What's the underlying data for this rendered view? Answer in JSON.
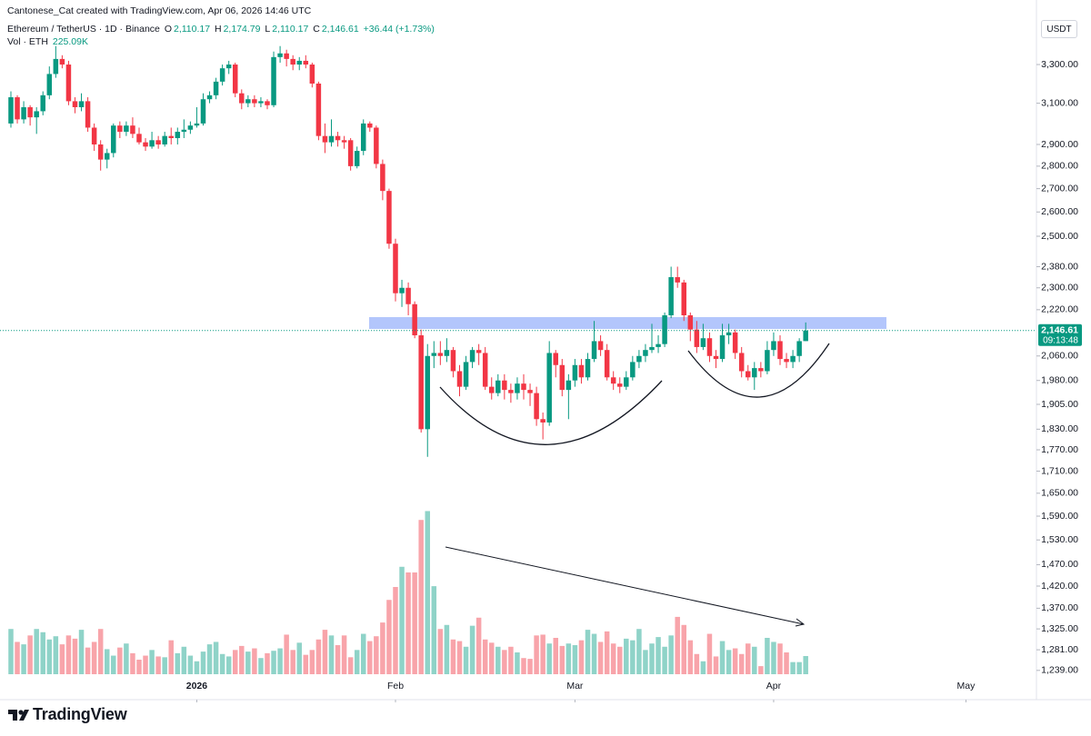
{
  "header": {
    "attribution": "Cantonese_Cat created with TradingView.com, Apr 06, 2026 14:46 UTC",
    "symbol": "Ethereum / TetherUS · 1D · Binance",
    "ohlc": [
      {
        "key": "O",
        "value": "2,110.17"
      },
      {
        "key": "H",
        "value": "2,174.79"
      },
      {
        "key": "L",
        "value": "2,110.17"
      },
      {
        "key": "C",
        "value": "2,146.61"
      }
    ],
    "change": "+36.44 (+1.73%)",
    "volume_title": "Vol · ETH",
    "volume_value": "225.09K"
  },
  "chart_data": {
    "type": "candlestick",
    "currency": "USDT",
    "open": [
      3000,
      3130,
      3020,
      3080,
      3030,
      3060,
      3140,
      3250,
      3330,
      3300,
      3110,
      3080,
      3110,
      2980,
      2900,
      2830,
      2860,
      2990,
      2960,
      2990,
      2950,
      2910,
      2890,
      2920,
      2900,
      2940,
      2930,
      2960,
      2970,
      2990,
      3000,
      3120,
      3140,
      3210,
      3280,
      3300,
      3150,
      3100,
      3120,
      3100,
      3110,
      3090,
      3340,
      3360,
      3330,
      3300,
      3320,
      3300,
      3200,
      2940,
      2910,
      2940,
      2920,
      2920,
      2800,
      2870,
      3000,
      2980,
      2810,
      2690,
      2470,
      2280,
      2300,
      2240,
      2130,
      1830,
      2060,
      2070,
      2060,
      2080,
      2010,
      1960,
      2040,
      2080,
      2070,
      1960,
      1940,
      1980,
      1950,
      1940,
      1970,
      1950,
      1940,
      1860,
      1850,
      2070,
      2030,
      1950,
      1980,
      2030,
      1990,
      2050,
      2110,
      2080,
      1990,
      1970,
      1960,
      1990,
      2040,
      2060,
      2080,
      2090,
      2100,
      2200,
      2340,
      2320,
      2200,
      2150,
      2090,
      2120,
      2060,
      2050,
      2130,
      2140,
      2070,
      2010,
      1990,
      2020,
      2010,
      2080,
      2110,
      2050,
      2040,
      2060,
      2110.17
    ],
    "high": [
      3160,
      3140,
      3110,
      3090,
      3080,
      3160,
      3290,
      3400,
      3350,
      3320,
      3130,
      3150,
      3130,
      3000,
      2920,
      2880,
      3000,
      3010,
      3010,
      3030,
      2980,
      2930,
      2960,
      2940,
      2960,
      2980,
      2980,
      3020,
      3010,
      3080,
      3150,
      3160,
      3230,
      3300,
      3320,
      3310,
      3170,
      3140,
      3140,
      3130,
      3120,
      3370,
      3400,
      3380,
      3350,
      3340,
      3350,
      3310,
      3210,
      3000,
      3020,
      2960,
      2940,
      2930,
      2890,
      3020,
      3010,
      2990,
      2830,
      2700,
      2490,
      2330,
      2320,
      2250,
      2150,
      2100,
      2110,
      2110,
      2120,
      2090,
      2030,
      2060,
      2090,
      2100,
      2090,
      1990,
      2000,
      2000,
      1970,
      1990,
      2000,
      1970,
      1960,
      1880,
      2110,
      2080,
      2050,
      2000,
      2050,
      2050,
      2070,
      2180,
      2130,
      2100,
      2010,
      1990,
      2010,
      2060,
      2080,
      2100,
      2170,
      2130,
      2210,
      2380,
      2380,
      2330,
      2210,
      2180,
      2170,
      2140,
      2080,
      2170,
      2170,
      2150,
      2090,
      2030,
      2040,
      2040,
      2110,
      2140,
      2130,
      2070,
      2080,
      2120,
      2174.79
    ],
    "low": [
      2980,
      3000,
      3000,
      2990,
      2950,
      3040,
      3120,
      3230,
      3280,
      3090,
      3050,
      3060,
      2960,
      2870,
      2780,
      2790,
      2840,
      2930,
      2940,
      2930,
      2900,
      2870,
      2880,
      2880,
      2890,
      2900,
      2900,
      2930,
      2950,
      2980,
      2990,
      3100,
      3120,
      3190,
      3250,
      3130,
      3070,
      3080,
      3080,
      3080,
      3070,
      3080,
      3310,
      3290,
      3270,
      3270,
      3280,
      3180,
      2920,
      2860,
      2890,
      2890,
      2880,
      2780,
      2790,
      2850,
      2960,
      2790,
      2650,
      2450,
      2250,
      2230,
      2200,
      2120,
      1820,
      1750,
      2020,
      2030,
      2040,
      1990,
      1930,
      1950,
      2020,
      2030,
      1950,
      1920,
      1930,
      1920,
      1910,
      1920,
      1920,
      1900,
      1840,
      1800,
      1840,
      1990,
      1930,
      1860,
      1960,
      1970,
      1980,
      2040,
      2060,
      1980,
      1950,
      1940,
      1950,
      1980,
      2020,
      2040,
      2070,
      2070,
      2090,
      2190,
      2300,
      2180,
      2110,
      2070,
      2080,
      2040,
      2020,
      2040,
      2100,
      2050,
      1990,
      1980,
      1950,
      1990,
      2000,
      2060,
      2030,
      2020,
      2020,
      2040,
      2110.17
    ],
    "close": [
      3130,
      3020,
      3080,
      3030,
      3060,
      3140,
      3250,
      3330,
      3300,
      3110,
      3080,
      3110,
      2980,
      2900,
      2830,
      2860,
      2990,
      2960,
      2990,
      2950,
      2910,
      2890,
      2920,
      2900,
      2940,
      2930,
      2960,
      2970,
      2990,
      3000,
      3120,
      3140,
      3210,
      3280,
      3300,
      3150,
      3100,
      3120,
      3100,
      3110,
      3090,
      3340,
      3360,
      3330,
      3300,
      3320,
      3300,
      3200,
      2940,
      2910,
      2940,
      2920,
      2910,
      2800,
      2870,
      3000,
      2980,
      2810,
      2690,
      2470,
      2280,
      2300,
      2240,
      2130,
      1830,
      2060,
      2070,
      2060,
      2080,
      2010,
      1960,
      2040,
      2080,
      2070,
      1960,
      1940,
      1980,
      1950,
      1940,
      1970,
      1950,
      1940,
      1860,
      1850,
      2070,
      2030,
      1950,
      1980,
      2030,
      1990,
      2050,
      2110,
      2080,
      1990,
      1970,
      1960,
      1990,
      2040,
      2060,
      2080,
      2090,
      2100,
      2200,
      2340,
      2320,
      2200,
      2150,
      2090,
      2120,
      2060,
      2050,
      2130,
      2140,
      2070,
      2010,
      1990,
      2020,
      2010,
      2080,
      2110,
      2050,
      2040,
      2060,
      2110,
      2146.61
    ],
    "volume": [
      560,
      400,
      370,
      480,
      560,
      520,
      430,
      470,
      370,
      480,
      440,
      550,
      330,
      400,
      560,
      310,
      230,
      330,
      380,
      260,
      180,
      230,
      300,
      220,
      210,
      420,
      260,
      340,
      230,
      160,
      280,
      370,
      400,
      250,
      220,
      300,
      350,
      280,
      320,
      200,
      260,
      290,
      320,
      490,
      300,
      390,
      240,
      300,
      430,
      550,
      480,
      360,
      480,
      210,
      300,
      500,
      410,
      470,
      640,
      920,
      1080,
      1330,
      1260,
      1260,
      1910,
      2020,
      1090,
      560,
      610,
      430,
      410,
      340,
      600,
      700,
      430,
      390,
      340,
      300,
      340,
      270,
      200,
      190,
      480,
      490,
      380,
      450,
      350,
      380,
      360,
      420,
      550,
      500,
      400,
      530,
      380,
      340,
      440,
      420,
      560,
      300,
      380,
      460,
      340,
      480,
      710,
      610,
      420,
      250,
      160,
      500,
      220,
      410,
      300,
      320,
      250,
      380,
      340,
      100,
      450,
      400,
      380,
      270,
      150,
      150,
      225.09
    ],
    "volume_ylim": [
      0,
      2250
    ],
    "xlim": [
      -1.7,
      160
    ],
    "xticks": [
      {
        "value": 29,
        "label": "2026"
      },
      {
        "value": 60,
        "label": "Feb"
      },
      {
        "value": 88,
        "label": "Mar"
      },
      {
        "value": 119,
        "label": "Apr"
      },
      {
        "value": 149,
        "label": "May"
      }
    ],
    "ylim": [
      1217,
      3663
    ],
    "log_scale": true,
    "grid": false,
    "yticks": [
      {
        "value": 3300,
        "label": "3,300.00"
      },
      {
        "value": 3100,
        "label": "3,100.00"
      },
      {
        "value": 2900,
        "label": "2,900.00"
      },
      {
        "value": 2800,
        "label": "2,800.00"
      },
      {
        "value": 2700,
        "label": "2,700.00"
      },
      {
        "value": 2600,
        "label": "2,600.00"
      },
      {
        "value": 2500,
        "label": "2,500.00"
      },
      {
        "value": 2380,
        "label": "2,380.00"
      },
      {
        "value": 2300,
        "label": "2,300.00"
      },
      {
        "value": 2220,
        "label": "2,220.00"
      },
      {
        "value": 2060,
        "label": "2,060.00"
      },
      {
        "value": 1980,
        "label": "1,980.00"
      },
      {
        "value": 1905,
        "label": "1,905.00"
      },
      {
        "value": 1830,
        "label": "1,830.00"
      },
      {
        "value": 1770,
        "label": "1,770.00"
      },
      {
        "value": 1710,
        "label": "1,710.00"
      },
      {
        "value": 1650,
        "label": "1,650.00"
      },
      {
        "value": 1590,
        "label": "1,590.00"
      },
      {
        "value": 1530,
        "label": "1,530.00"
      },
      {
        "value": 1470,
        "label": "1,470.00"
      },
      {
        "value": 1420,
        "label": "1,420.00"
      },
      {
        "value": 1370,
        "label": "1,370.00"
      },
      {
        "value": 1325,
        "label": "1,325.00"
      },
      {
        "value": 1281,
        "label": "1,281.00"
      },
      {
        "value": 1239,
        "label": "1,239.00"
      }
    ],
    "last_price": {
      "value": 2146.61,
      "label": "2,146.61"
    },
    "countdown": "09:13:48",
    "colors": {
      "up": "#089981",
      "down": "#f23645",
      "volume_up": "#8fd3c8",
      "volume_down": "#f8a4aa"
    }
  },
  "footer": {
    "brand": "TradingView"
  }
}
